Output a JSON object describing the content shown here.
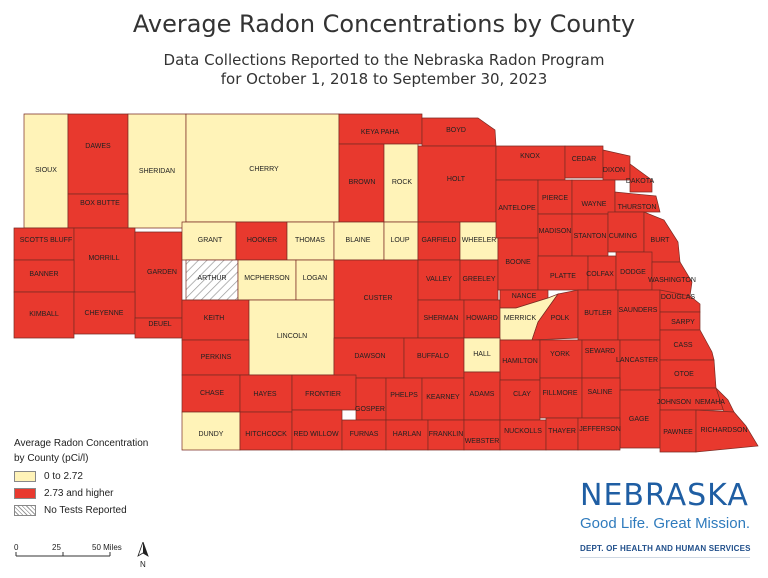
{
  "title": "Average Radon Concentrations by County",
  "subtitle": "Data Collections Reported to the Nebraska Radon Program",
  "subtitle2": "for October 1, 2018 to September 30, 2023",
  "colors": {
    "high": "#e8392e",
    "low": "#fff3b8",
    "border": "#7a2a22"
  },
  "counties": {
    "sioux": {
      "label": "SIOUX",
      "status": "low"
    },
    "dawes": {
      "label": "DAWES",
      "status": "high"
    },
    "sheridan": {
      "label": "SHERIDAN",
      "status": "low"
    },
    "cherry": {
      "label": "CHERRY",
      "status": "low"
    },
    "keya_paha": {
      "label": "KEYA PAHA",
      "status": "high"
    },
    "boyd": {
      "label": "BOYD",
      "status": "high"
    },
    "brown": {
      "label": "BROWN",
      "status": "high"
    },
    "rock": {
      "label": "ROCK",
      "status": "low"
    },
    "holt": {
      "label": "HOLT",
      "status": "high"
    },
    "knox": {
      "label": "KNOX",
      "status": "high"
    },
    "cedar": {
      "label": "CEDAR",
      "status": "high"
    },
    "dixon": {
      "label": "DIXON",
      "status": "high"
    },
    "dakota": {
      "label": "DAKOTA",
      "status": "high"
    },
    "box_butte": {
      "label": "BOX BUTTE",
      "status": "high"
    },
    "scotts_bluff": {
      "label": "SCOTTS BLUFF",
      "status": "high"
    },
    "morrill": {
      "label": "MORRILL",
      "status": "high"
    },
    "banner": {
      "label": "BANNER",
      "status": "high"
    },
    "garden": {
      "label": "GARDEN",
      "status": "high"
    },
    "kimball": {
      "label": "KIMBALL",
      "status": "high"
    },
    "cheyenne": {
      "label": "CHEYENNE",
      "status": "high"
    },
    "deuel": {
      "label": "DEUEL",
      "status": "high"
    },
    "grant": {
      "label": "GRANT",
      "status": "low"
    },
    "hooker": {
      "label": "HOOKER",
      "status": "high"
    },
    "thomas": {
      "label": "THOMAS",
      "status": "low"
    },
    "blaine": {
      "label": "BLAINE",
      "status": "low"
    },
    "loup": {
      "label": "LOUP",
      "status": "low"
    },
    "garfield": {
      "label": "GARFIELD",
      "status": "high"
    },
    "wheeler": {
      "label": "WHEELER",
      "status": "low"
    },
    "arthur": {
      "label": "ARTHUR",
      "status": "none"
    },
    "mcpherson": {
      "label": "MCPHERSON",
      "status": "low"
    },
    "logan": {
      "label": "LOGAN",
      "status": "low"
    },
    "custer": {
      "label": "CUSTER",
      "status": "high"
    },
    "valley": {
      "label": "VALLEY",
      "status": "high"
    },
    "greeley": {
      "label": "GREELEY",
      "status": "high"
    },
    "keith": {
      "label": "KEITH",
      "status": "high"
    },
    "lincoln": {
      "label": "LINCOLN",
      "status": "low"
    },
    "sherman": {
      "label": "SHERMAN",
      "status": "high"
    },
    "howard": {
      "label": "HOWARD",
      "status": "high"
    },
    "antelope": {
      "label": "ANTELOPE",
      "status": "high"
    },
    "pierce": {
      "label": "PIERCE",
      "status": "high"
    },
    "wayne": {
      "label": "WAYNE",
      "status": "high"
    },
    "thurston": {
      "label": "THURSTON",
      "status": "high"
    },
    "madison": {
      "label": "MADISON",
      "status": "high"
    },
    "stanton": {
      "label": "STANTON",
      "status": "high"
    },
    "cuming": {
      "label": "CUMING",
      "status": "high"
    },
    "burt": {
      "label": "BURT",
      "status": "high"
    },
    "boone": {
      "label": "BOONE",
      "status": "high"
    },
    "platte": {
      "label": "PLATTE",
      "status": "high"
    },
    "colfax": {
      "label": "COLFAX",
      "status": "high"
    },
    "dodge": {
      "label": "DODGE",
      "status": "high"
    },
    "washington": {
      "label": "WASHINGTON",
      "status": "high"
    },
    "nance": {
      "label": "NANCE",
      "status": "high"
    },
    "merrick": {
      "label": "MERRICK",
      "status": "low"
    },
    "polk": {
      "label": "POLK",
      "status": "high"
    },
    "butler": {
      "label": "BUTLER",
      "status": "high"
    },
    "saunders": {
      "label": "SAUNDERS",
      "status": "high"
    },
    "douglas": {
      "label": "DOUGLAS",
      "status": "high"
    },
    "sarpy": {
      "label": "SARPY",
      "status": "high"
    },
    "perkins": {
      "label": "PERKINS",
      "status": "high"
    },
    "dawson": {
      "label": "DAWSON",
      "status": "high"
    },
    "buffalo": {
      "label": "BUFFALO",
      "status": "high"
    },
    "hall": {
      "label": "HALL",
      "status": "low"
    },
    "hamilton": {
      "label": "HAMILTON",
      "status": "high"
    },
    "york": {
      "label": "YORK",
      "status": "high"
    },
    "seward": {
      "label": "SEWARD",
      "status": "high"
    },
    "lancaster": {
      "label": "LANCASTER",
      "status": "high"
    },
    "cass": {
      "label": "CASS",
      "status": "high"
    },
    "otoe": {
      "label": "OTOE",
      "status": "high"
    },
    "chase": {
      "label": "CHASE",
      "status": "high"
    },
    "hayes": {
      "label": "HAYES",
      "status": "high"
    },
    "frontier": {
      "label": "FRONTIER",
      "status": "high"
    },
    "gosper": {
      "label": "GOSPER",
      "status": "high"
    },
    "phelps": {
      "label": "PHELPS",
      "status": "high"
    },
    "kearney": {
      "label": "KEARNEY",
      "status": "high"
    },
    "adams": {
      "label": "ADAMS",
      "status": "high"
    },
    "clay": {
      "label": "CLAY",
      "status": "high"
    },
    "fillmore": {
      "label": "FILLMORE",
      "status": "high"
    },
    "saline": {
      "label": "SALINE",
      "status": "high"
    },
    "johnson": {
      "label": "JOHNSON",
      "status": "high"
    },
    "nemaha": {
      "label": "NEMAHA",
      "status": "high"
    },
    "gage": {
      "label": "GAGE",
      "status": "high"
    },
    "dundy": {
      "label": "DUNDY",
      "status": "low"
    },
    "hitchcock": {
      "label": "HITCHCOCK",
      "status": "high"
    },
    "red_willow": {
      "label": "RED WILLOW",
      "status": "high"
    },
    "furnas": {
      "label": "FURNAS",
      "status": "high"
    },
    "harlan": {
      "label": "HARLAN",
      "status": "high"
    },
    "franklin": {
      "label": "FRANKLIN",
      "status": "high"
    },
    "webster": {
      "label": "WEBSTER",
      "status": "high"
    },
    "nuckolls": {
      "label": "NUCKOLLS",
      "status": "high"
    },
    "thayer": {
      "label": "THAYER",
      "status": "high"
    },
    "jefferson": {
      "label": "JEFFERSON",
      "status": "high"
    },
    "pawnee": {
      "label": "PAWNEE",
      "status": "high"
    },
    "richardson": {
      "label": "RICHARDSON",
      "status": "high"
    }
  },
  "legend": {
    "title_line1": "Average Radon Concentration",
    "title_line2": "by County (pCi/l)",
    "items": [
      {
        "label": "0 to 2.72",
        "status": "low"
      },
      {
        "label": "2.73 and higher",
        "status": "high"
      },
      {
        "label": "No Tests Reported",
        "status": "none"
      }
    ]
  },
  "scale_bar": {
    "tick0": "0",
    "tick1": "25",
    "tick2": "50 Miles",
    "north": "N"
  },
  "logo": {
    "name": "NEBRASKA",
    "tagline": "Good Life. Great Mission.",
    "department": "DEPT. OF HEALTH AND HUMAN SERVICES"
  }
}
